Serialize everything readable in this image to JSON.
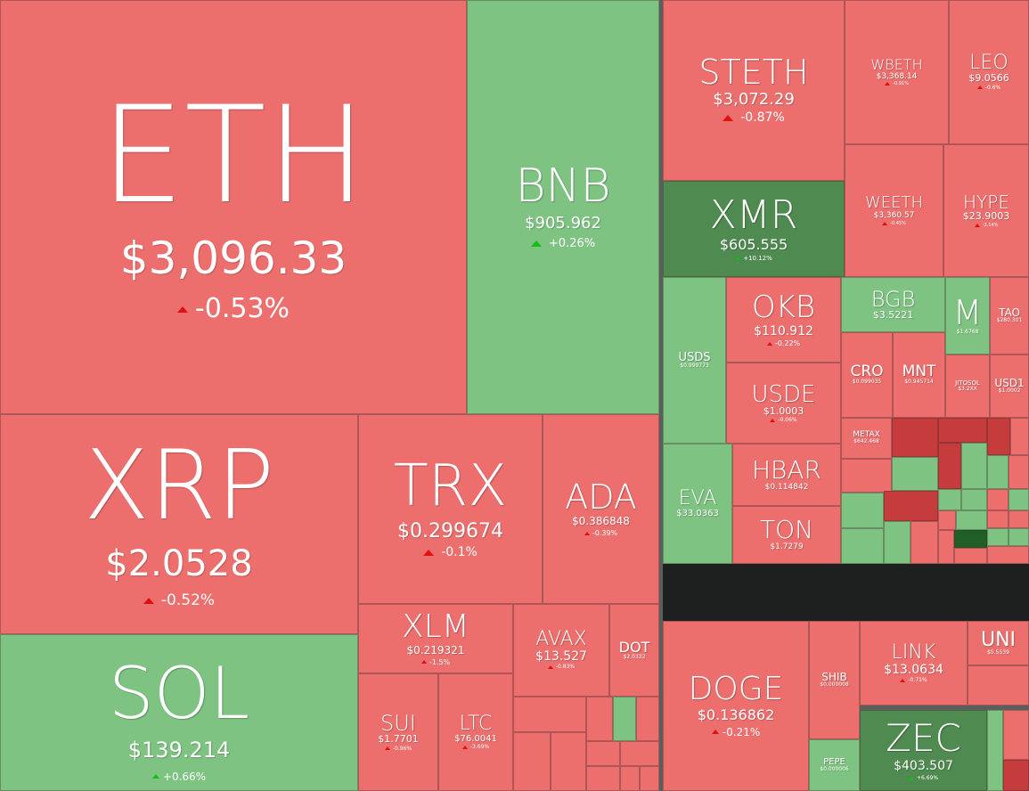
{
  "colors": {
    "red": "#ec6f6e",
    "green": "#7ec382",
    "dark_green": "#4f8a50",
    "dark_red": "#c63b3c",
    "arrow_down": "#e01010",
    "arrow_up": "#12c012"
  },
  "tiles": [
    {
      "id": "eth",
      "symbol": "ETH",
      "price": "$3,096.33",
      "change": "-0.53%",
      "dir": "down"
    },
    {
      "id": "bnb",
      "symbol": "BNB",
      "price": "$905.962",
      "change": "+0.26%",
      "dir": "up"
    },
    {
      "id": "steth",
      "symbol": "STETH",
      "price": "$3,072.29",
      "change": "-0.87%",
      "dir": "down"
    },
    {
      "id": "wbeth",
      "symbol": "WBETH",
      "price": "$3,368.14",
      "change": "-0.91%",
      "dir": "down"
    },
    {
      "id": "leo",
      "symbol": "LEO",
      "price": "$9.0566",
      "change": "-0.6%",
      "dir": "down"
    },
    {
      "id": "xmr",
      "symbol": "XMR",
      "price": "$605.555",
      "change": "+10.12%",
      "dir": "up"
    },
    {
      "id": "weeth",
      "symbol": "WEETH",
      "price": "$3,360.57",
      "change": "-0.45%",
      "dir": "down"
    },
    {
      "id": "hype",
      "symbol": "HYPE",
      "price": "$23.9003",
      "change": "-2.14%",
      "dir": "down"
    },
    {
      "id": "usds",
      "symbol": "USDS",
      "price": "$0.999773",
      "change": "",
      "dir": "up"
    },
    {
      "id": "okb",
      "symbol": "OKB",
      "price": "$110.912",
      "change": "-0.22%",
      "dir": "down"
    },
    {
      "id": "bgb",
      "symbol": "BGB",
      "price": "$3.5221",
      "change": "",
      "dir": "up"
    },
    {
      "id": "m",
      "symbol": "M",
      "price": "$1.6768",
      "change": "",
      "dir": "up"
    },
    {
      "id": "tao",
      "symbol": "TAO",
      "price": "$280.301",
      "change": "",
      "dir": "down"
    },
    {
      "id": "usde",
      "symbol": "USDE",
      "price": "$1.0003",
      "change": "-0.06%",
      "dir": "down"
    },
    {
      "id": "cro",
      "symbol": "CRO",
      "price": "$0.099035",
      "change": "",
      "dir": "down"
    },
    {
      "id": "mnt",
      "symbol": "MNT",
      "price": "$0.945714",
      "change": "",
      "dir": "down"
    },
    {
      "id": "jitosol",
      "symbol": "JITOSOL",
      "price": "$3.2XX",
      "change": "",
      "dir": "down"
    },
    {
      "id": "usd1",
      "symbol": "USD1",
      "price": "$1.0002",
      "change": "",
      "dir": "down"
    },
    {
      "id": "metax",
      "symbol": "METAX",
      "price": "$642.468",
      "change": "",
      "dir": "down"
    },
    {
      "id": "xrp",
      "symbol": "XRP",
      "price": "$2.0528",
      "change": "-0.52%",
      "dir": "down"
    },
    {
      "id": "trx",
      "symbol": "TRX",
      "price": "$0.299674",
      "change": "-0.1%",
      "dir": "down"
    },
    {
      "id": "ada",
      "symbol": "ADA",
      "price": "$0.386848",
      "change": "-0.39%",
      "dir": "down"
    },
    {
      "id": "eva",
      "symbol": "EVA",
      "price": "$33.0363",
      "change": "",
      "dir": "up"
    },
    {
      "id": "hbar",
      "symbol": "HBAR",
      "price": "$0.114842",
      "change": "",
      "dir": "down"
    },
    {
      "id": "ton",
      "symbol": "TON",
      "price": "$1.7279",
      "change": "",
      "dir": "down"
    },
    {
      "id": "sol",
      "symbol": "SOL",
      "price": "$139.214",
      "change": "+0.66%",
      "dir": "up"
    },
    {
      "id": "xlm",
      "symbol": "XLM",
      "price": "$0.219321",
      "change": "-1.5%",
      "dir": "down"
    },
    {
      "id": "avax",
      "symbol": "AVAX",
      "price": "$13.527",
      "change": "-0.83%",
      "dir": "down"
    },
    {
      "id": "dot",
      "symbol": "DOT",
      "price": "$2.0332",
      "change": "",
      "dir": "down"
    },
    {
      "id": "sui",
      "symbol": "SUI",
      "price": "$1.7701",
      "change": "-0.96%",
      "dir": "down"
    },
    {
      "id": "ltc",
      "symbol": "LTC",
      "price": "$76.0041",
      "change": "-3.69%",
      "dir": "down"
    },
    {
      "id": "doge",
      "symbol": "DOGE",
      "price": "$0.136862",
      "change": "-0.21%",
      "dir": "down"
    },
    {
      "id": "shib",
      "symbol": "SHIB",
      "price": "$0.000008",
      "change": "",
      "dir": "down"
    },
    {
      "id": "pepe",
      "symbol": "PEPE",
      "price": "$0.000006",
      "change": "",
      "dir": "up"
    },
    {
      "id": "link",
      "symbol": "LINK",
      "price": "$13.0634",
      "change": "-0.71%",
      "dir": "down"
    },
    {
      "id": "uni",
      "symbol": "UNI",
      "price": "$5.5539",
      "change": "",
      "dir": "down"
    },
    {
      "id": "zec",
      "symbol": "ZEC",
      "price": "$403.507",
      "change": "+6.69%",
      "dir": "up"
    }
  ]
}
